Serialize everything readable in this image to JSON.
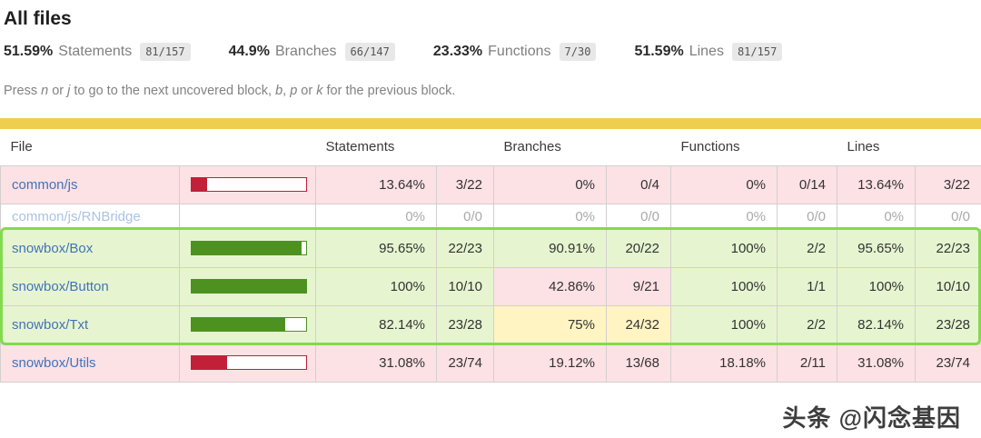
{
  "page": {
    "title": "All files"
  },
  "summary": [
    {
      "pct": "51.59%",
      "label": "Statements",
      "fraction": "81/157"
    },
    {
      "pct": "44.9%",
      "label": "Branches",
      "fraction": "66/147"
    },
    {
      "pct": "23.33%",
      "label": "Functions",
      "fraction": "7/30"
    },
    {
      "pct": "51.59%",
      "label": "Lines",
      "fraction": "81/157"
    }
  ],
  "help": {
    "parts": [
      "Press ",
      "n",
      " or ",
      "j",
      " to go to the next uncovered block, ",
      "b",
      ", ",
      "p",
      " or ",
      "k",
      " for the previous block."
    ]
  },
  "colors": {
    "status_line": "#efce4e",
    "bar_low": "#c21f39",
    "bar_high": "#4d9221",
    "highlight_border": "#82da4e"
  },
  "table": {
    "headers": {
      "file": "File",
      "statements": "Statements",
      "branches": "Branches",
      "functions": "Functions",
      "lines": "Lines"
    },
    "rows": [
      {
        "file": "common/js",
        "level": "low",
        "highlighted": false,
        "bar": {
          "pct": 13.64,
          "tone": "low"
        },
        "statements": {
          "pct": "13.64%",
          "frac": "3/22",
          "level": "low"
        },
        "branches": {
          "pct": "0%",
          "frac": "0/4",
          "level": "low"
        },
        "functions": {
          "pct": "0%",
          "frac": "0/14",
          "level": "low"
        },
        "lines": {
          "pct": "13.64%",
          "frac": "3/22",
          "level": "low"
        }
      },
      {
        "file": "common/js/RNBridge",
        "level": "empty",
        "highlighted": false,
        "bar": null,
        "statements": {
          "pct": "0%",
          "frac": "0/0",
          "level": "empty"
        },
        "branches": {
          "pct": "0%",
          "frac": "0/0",
          "level": "empty"
        },
        "functions": {
          "pct": "0%",
          "frac": "0/0",
          "level": "empty"
        },
        "lines": {
          "pct": "0%",
          "frac": "0/0",
          "level": "empty"
        }
      },
      {
        "file": "snowbox/Box",
        "level": "high",
        "highlighted": true,
        "bar": {
          "pct": 95.65,
          "tone": "high"
        },
        "statements": {
          "pct": "95.65%",
          "frac": "22/23",
          "level": "high"
        },
        "branches": {
          "pct": "90.91%",
          "frac": "20/22",
          "level": "high"
        },
        "functions": {
          "pct": "100%",
          "frac": "2/2",
          "level": "high"
        },
        "lines": {
          "pct": "95.65%",
          "frac": "22/23",
          "level": "high"
        }
      },
      {
        "file": "snowbox/Button",
        "level": "high",
        "highlighted": true,
        "bar": {
          "pct": 100,
          "tone": "high"
        },
        "statements": {
          "pct": "100%",
          "frac": "10/10",
          "level": "high"
        },
        "branches": {
          "pct": "42.86%",
          "frac": "9/21",
          "level": "low"
        },
        "functions": {
          "pct": "100%",
          "frac": "1/1",
          "level": "high"
        },
        "lines": {
          "pct": "100%",
          "frac": "10/10",
          "level": "high"
        }
      },
      {
        "file": "snowbox/Txt",
        "level": "high",
        "highlighted": true,
        "bar": {
          "pct": 82.14,
          "tone": "high"
        },
        "statements": {
          "pct": "82.14%",
          "frac": "23/28",
          "level": "high"
        },
        "branches": {
          "pct": "75%",
          "frac": "24/32",
          "level": "medium"
        },
        "functions": {
          "pct": "100%",
          "frac": "2/2",
          "level": "high"
        },
        "lines": {
          "pct": "82.14%",
          "frac": "23/28",
          "level": "high"
        }
      },
      {
        "file": "snowbox/Utils",
        "level": "low",
        "highlighted": false,
        "bar": {
          "pct": 31.08,
          "tone": "low"
        },
        "statements": {
          "pct": "31.08%",
          "frac": "23/74",
          "level": "low"
        },
        "branches": {
          "pct": "19.12%",
          "frac": "13/68",
          "level": "low"
        },
        "functions": {
          "pct": "18.18%",
          "frac": "2/11",
          "level": "low"
        },
        "lines": {
          "pct": "31.08%",
          "frac": "23/74",
          "level": "low"
        }
      }
    ]
  },
  "watermark": {
    "text": "头条 @闪念基因"
  }
}
